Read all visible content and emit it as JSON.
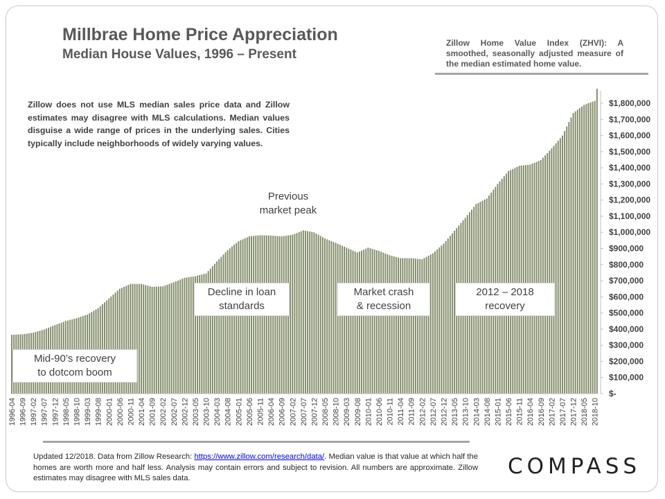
{
  "header": {
    "title": "Millbrae Home Price Appreciation",
    "subtitle": "Median House Values, 1996 – Present",
    "zhvi_note": "Zillow Home Value Index (ZHVI): A smoothed, seasonally adjusted measure of the median estimated home value."
  },
  "disclaimer": "Zillow does not use MLS median sales price data and Zillow estimates may disagree with MLS calculations. Median values disguise a wide range of prices in the underlying sales. Cities typically include neighborhoods of widely varying values.",
  "annotations": {
    "mid90s_line1": "Mid-90’s recovery",
    "mid90s_line2": "to dotcom boom",
    "loan_line1": "Decline in loan",
    "loan_line2": "standards",
    "peak_line1": "Previous",
    "peak_line2": "market peak",
    "crash_line1": "Market crash",
    "crash_line2": "& recession",
    "recovery_line1": "2012 – 2018",
    "recovery_line2": "recovery"
  },
  "footer": {
    "text_before": "Updated 12/2018. Data from Zillow Research: ",
    "link": "https://www.zillow.com/research/data/",
    "text_after": ". Median value is that value at which half the homes are worth more and half less. Analysis may contain errors and subject to revision. All numbers are approximate. Zillow estimates may disagree with MLS sales data."
  },
  "logo": "COMPASS",
  "chart_data": {
    "type": "bar",
    "bar_color": "#7f8a66",
    "title": "Millbrae Home Price Appreciation",
    "subtitle": "Median House Values, 1996 – Present",
    "start": "1996-04",
    "end": "2018-11",
    "ylim": [
      0,
      1900000
    ],
    "y_ticks": [
      0,
      100000,
      200000,
      300000,
      400000,
      500000,
      600000,
      700000,
      800000,
      900000,
      1000000,
      1100000,
      1200000,
      1300000,
      1400000,
      1500000,
      1600000,
      1700000,
      1800000
    ],
    "y_tick_labels": [
      "$-",
      "$100,000",
      "$200,000",
      "$300,000",
      "$400,000",
      "$500,000",
      "$600,000",
      "$700,000",
      "$800,000",
      "$900,000",
      "$1,000,000",
      "$1,100,000",
      "$1,200,000",
      "$1,300,000",
      "$1,400,000",
      "$1,500,000",
      "$1,600,000",
      "$1,700,000",
      "$1,800,000"
    ],
    "x_tick_labels": [
      "1996-04",
      "1996-09",
      "1997-02",
      "1997-07",
      "1997-12",
      "1998-05",
      "1998-10",
      "1999-03",
      "1999-08",
      "2000-01",
      "2000-06",
      "2000-11",
      "2001-04",
      "2001-09",
      "2002-02",
      "2002-07",
      "2002-12",
      "2003-05",
      "2003-10",
      "2004-03",
      "2004-08",
      "2005-01",
      "2005-06",
      "2005-11",
      "2006-04",
      "2006-09",
      "2007-02",
      "2007-07",
      "2007-12",
      "2008-05",
      "2008-10",
      "2009-03",
      "2009-08",
      "2010-01",
      "2010-06",
      "2010-11",
      "2011-04",
      "2011-09",
      "2012-02",
      "2012-07",
      "2012-12",
      "2013-05",
      "2013-10",
      "2014-03",
      "2014-08",
      "2015-01",
      "2015-06",
      "2015-11",
      "2016-04",
      "2016-09",
      "2017-02",
      "2017-07",
      "2017-12",
      "2018-05",
      "2018-10"
    ],
    "anchors": [
      [
        "1996-04",
        365000
      ],
      [
        "1996-09",
        368000
      ],
      [
        "1997-02",
        378000
      ],
      [
        "1997-07",
        398000
      ],
      [
        "1997-12",
        425000
      ],
      [
        "1998-05",
        450000
      ],
      [
        "1998-10",
        468000
      ],
      [
        "1999-03",
        490000
      ],
      [
        "1999-08",
        530000
      ],
      [
        "2000-01",
        590000
      ],
      [
        "2000-06",
        650000
      ],
      [
        "2000-11",
        680000
      ],
      [
        "2001-04",
        680000
      ],
      [
        "2001-09",
        662000
      ],
      [
        "2002-02",
        665000
      ],
      [
        "2002-07",
        690000
      ],
      [
        "2002-12",
        718000
      ],
      [
        "2003-05",
        728000
      ],
      [
        "2003-10",
        745000
      ],
      [
        "2004-03",
        820000
      ],
      [
        "2004-08",
        890000
      ],
      [
        "2005-01",
        945000
      ],
      [
        "2005-06",
        975000
      ],
      [
        "2005-11",
        982000
      ],
      [
        "2006-04",
        980000
      ],
      [
        "2006-09",
        975000
      ],
      [
        "2007-02",
        985000
      ],
      [
        "2007-07",
        1012000
      ],
      [
        "2007-12",
        1000000
      ],
      [
        "2008-05",
        962000
      ],
      [
        "2008-10",
        935000
      ],
      [
        "2009-03",
        905000
      ],
      [
        "2009-08",
        875000
      ],
      [
        "2010-01",
        905000
      ],
      [
        "2010-06",
        885000
      ],
      [
        "2010-11",
        858000
      ],
      [
        "2011-04",
        840000
      ],
      [
        "2011-09",
        840000
      ],
      [
        "2012-02",
        833000
      ],
      [
        "2012-07",
        870000
      ],
      [
        "2012-12",
        930000
      ],
      [
        "2013-05",
        1010000
      ],
      [
        "2013-10",
        1090000
      ],
      [
        "2014-03",
        1175000
      ],
      [
        "2014-08",
        1210000
      ],
      [
        "2015-01",
        1300000
      ],
      [
        "2015-06",
        1380000
      ],
      [
        "2015-11",
        1412000
      ],
      [
        "2016-04",
        1420000
      ],
      [
        "2016-09",
        1448000
      ],
      [
        "2017-02",
        1520000
      ],
      [
        "2017-07",
        1600000
      ],
      [
        "2017-12",
        1740000
      ],
      [
        "2018-05",
        1790000
      ],
      [
        "2018-10",
        1815000
      ],
      [
        "2018-11",
        1890000
      ]
    ]
  }
}
